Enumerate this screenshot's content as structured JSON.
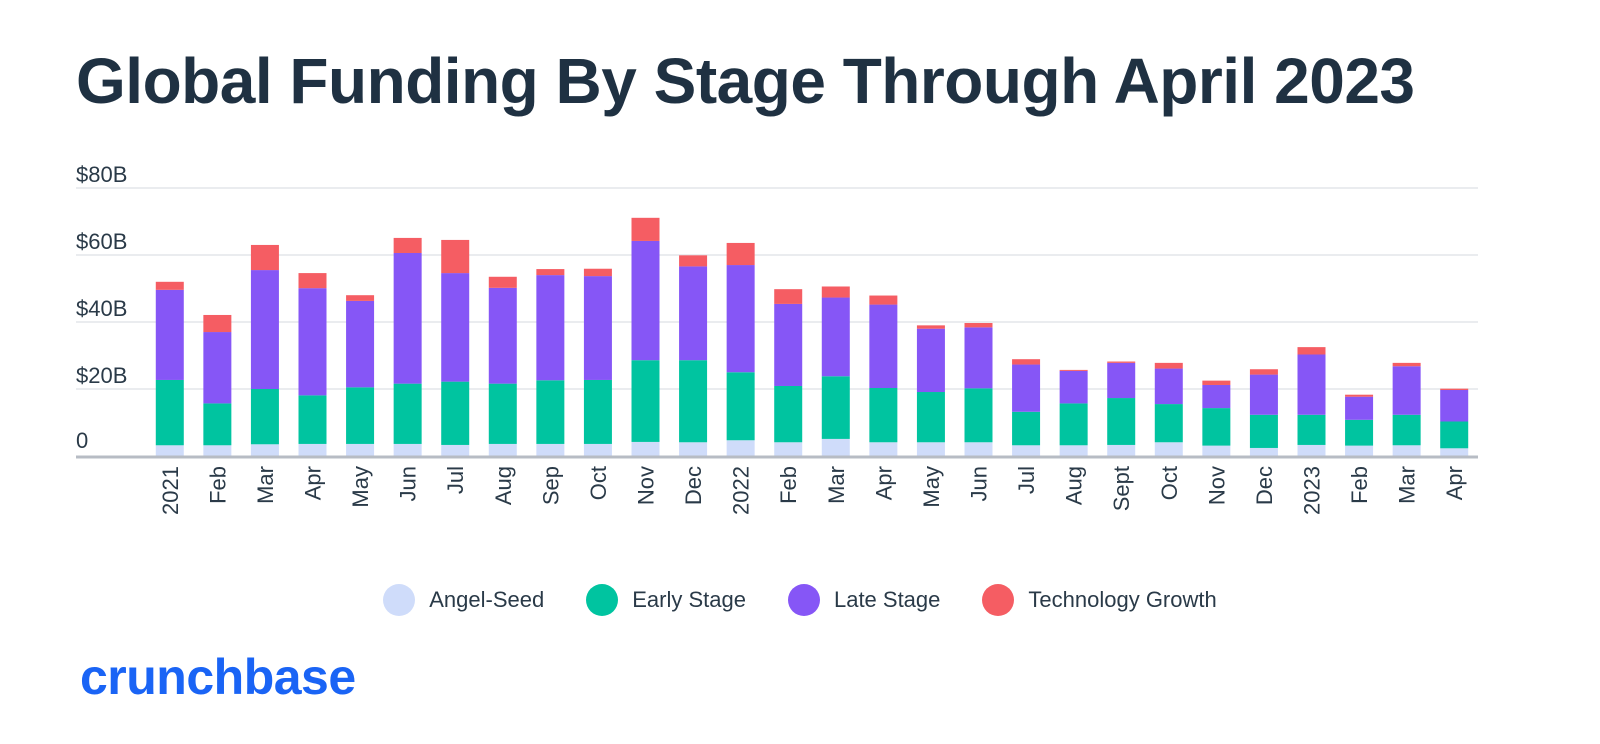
{
  "title": "Global Funding By Stage Through April 2023",
  "brand": {
    "name": "crunchbase",
    "color": "#1a64f5"
  },
  "chart_data": {
    "type": "bar",
    "stacked": true,
    "title": "Global Funding By Stage Through April 2023",
    "xlabel": "",
    "ylabel": "",
    "ylim": [
      0,
      80
    ],
    "unit": "B",
    "yticks": [
      {
        "value": 0,
        "label": "0"
      },
      {
        "value": 20,
        "label": "$20B"
      },
      {
        "value": 40,
        "label": "$40B"
      },
      {
        "value": 60,
        "label": "$60B"
      },
      {
        "value": 80,
        "label": "$80B"
      }
    ],
    "grid": true,
    "legend_position": "bottom",
    "categories": [
      "2021",
      "Feb",
      "Mar",
      "Apr",
      "May",
      "Jun",
      "Jul",
      "Aug",
      "Sep",
      "Oct",
      "Nov",
      "Dec",
      "2022",
      "Feb",
      "Mar",
      "Apr",
      "May",
      "Jun",
      "Jul",
      "Aug",
      "Sept",
      "Oct",
      "Nov",
      "Dec",
      "2023",
      "Feb",
      "Mar",
      "Apr"
    ],
    "series": [
      {
        "name": "Angel-Seed",
        "color": "#cfdcfa",
        "values": [
          3.2,
          3.2,
          3.5,
          3.6,
          3.6,
          3.6,
          3.3,
          3.6,
          3.6,
          3.6,
          4.2,
          4.1,
          4.7,
          4.1,
          5.1,
          4.1,
          4.1,
          4.1,
          3.2,
          3.2,
          3.3,
          4.1,
          3.1,
          2.4,
          3.3,
          3.1,
          3.2,
          2.3
        ]
      },
      {
        "name": "Early Stage",
        "color": "#00c4a0",
        "values": [
          19.5,
          12.5,
          16.5,
          14.5,
          16.9,
          18.0,
          18.9,
          18.0,
          19.0,
          19.1,
          24.4,
          24.5,
          20.3,
          16.8,
          18.7,
          16.2,
          15.0,
          16.1,
          10.0,
          12.5,
          14.0,
          11.4,
          11.2,
          9.9,
          9.0,
          7.7,
          9.1,
          8.0
        ]
      },
      {
        "name": "Late Stage",
        "color": "#8656f6",
        "values": [
          26.9,
          21.3,
          35.5,
          32.0,
          25.8,
          39.0,
          32.4,
          28.6,
          31.4,
          31.0,
          35.6,
          28.0,
          32.0,
          24.5,
          23.5,
          24.9,
          18.9,
          18.2,
          14.1,
          9.7,
          10.5,
          10.6,
          6.9,
          12.0,
          18.0,
          6.9,
          14.5,
          9.4
        ]
      },
      {
        "name": "Technology Growth",
        "color": "#f55d63",
        "values": [
          2.4,
          5.1,
          7.5,
          4.5,
          1.7,
          4.5,
          9.9,
          3.3,
          1.8,
          2.2,
          6.9,
          3.3,
          6.6,
          4.4,
          3.3,
          2.7,
          1.0,
          1.3,
          1.6,
          0.3,
          0.4,
          1.7,
          1.3,
          1.6,
          2.2,
          0.6,
          1.0,
          0.4
        ]
      }
    ]
  }
}
